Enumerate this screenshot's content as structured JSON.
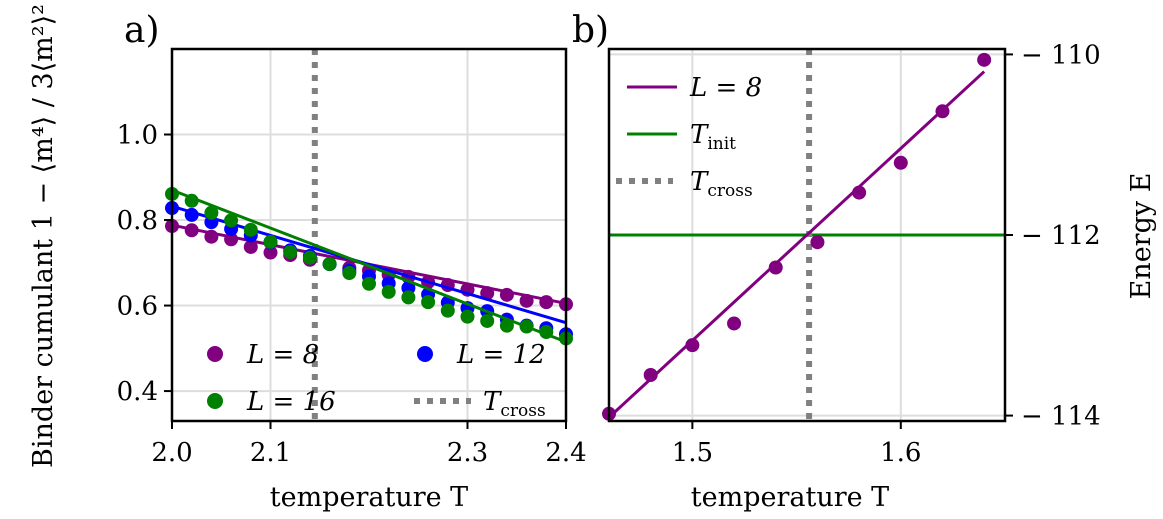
{
  "chart_data": [
    {
      "panel_label": "a)",
      "type": "scatter",
      "xlabel": "temperature T",
      "ylabel": "Binder cumulant 1 − ⟨m⁴⟩ / 3⟨m²⟩²",
      "xlim": [
        2.0,
        2.4
      ],
      "ylim": [
        0.33,
        1.2
      ],
      "xticks": [
        "2.0",
        "2.1",
        "2.3",
        "2.4"
      ],
      "xtick_values": [
        2.0,
        2.1,
        2.3,
        2.4
      ],
      "yticks": [
        "0.4",
        "0.6",
        "0.8",
        "1.0"
      ],
      "ytick_values": [
        0.4,
        0.6,
        0.8,
        1.0
      ],
      "grid": true,
      "legend_placement": "lower center",
      "series": [
        {
          "name": "L = 8",
          "color": "#800080",
          "x": [
            2.0,
            2.02,
            2.04,
            2.06,
            2.08,
            2.1,
            2.12,
            2.14,
            2.16,
            2.18,
            2.2,
            2.22,
            2.24,
            2.26,
            2.28,
            2.3,
            2.32,
            2.34,
            2.36,
            2.38,
            2.4
          ],
          "values": [
            0.786,
            0.776,
            0.761,
            0.755,
            0.737,
            0.724,
            0.718,
            0.707,
            0.697,
            0.688,
            0.682,
            0.672,
            0.667,
            0.655,
            0.648,
            0.637,
            0.629,
            0.625,
            0.611,
            0.608,
            0.603
          ],
          "fit": [
            0.788,
            0.605
          ]
        },
        {
          "name": "L = 12",
          "color": "#0000ff",
          "x": [
            2.0,
            2.02,
            2.04,
            2.06,
            2.08,
            2.1,
            2.12,
            2.14,
            2.16,
            2.18,
            2.2,
            2.22,
            2.24,
            2.26,
            2.28,
            2.3,
            2.32,
            2.34,
            2.36,
            2.38,
            2.4
          ],
          "values": [
            0.828,
            0.812,
            0.795,
            0.779,
            0.764,
            0.748,
            0.729,
            0.716,
            0.697,
            0.681,
            0.668,
            0.652,
            0.641,
            0.626,
            0.607,
            0.594,
            0.587,
            0.567,
            0.553,
            0.547,
            0.533
          ],
          "fit": [
            0.832,
            0.56
          ]
        },
        {
          "name": "L = 16",
          "color": "#008000",
          "x": [
            2.0,
            2.02,
            2.04,
            2.06,
            2.08,
            2.1,
            2.12,
            2.14,
            2.16,
            2.18,
            2.2,
            2.22,
            2.24,
            2.26,
            2.28,
            2.3,
            2.32,
            2.34,
            2.36,
            2.38,
            2.4
          ],
          "values": [
            0.861,
            0.845,
            0.817,
            0.799,
            0.777,
            0.749,
            0.725,
            0.712,
            0.697,
            0.676,
            0.651,
            0.632,
            0.619,
            0.608,
            0.588,
            0.574,
            0.564,
            0.553,
            0.551,
            0.538,
            0.523
          ],
          "fit": [
            0.87,
            0.515
          ]
        }
      ],
      "vline": {
        "name": "T_cross",
        "x": 2.145,
        "color": "#808080"
      },
      "legend": [
        {
          "label_main": "L = 8",
          "label_sub": "",
          "series": "L = 8",
          "marker": "dot",
          "color": "#800080"
        },
        {
          "label_main": "L = 12",
          "label_sub": "",
          "series": "L = 12",
          "marker": "dot",
          "color": "#0000ff"
        },
        {
          "label_main": "L = 16",
          "label_sub": "",
          "series": "L = 16",
          "marker": "dot",
          "color": "#008000"
        },
        {
          "label_main": "T",
          "label_sub": "cross",
          "series": "T_cross",
          "marker": "dotted-line",
          "color": "#808080"
        }
      ]
    },
    {
      "panel_label": "b)",
      "type": "scatter",
      "xlabel": "temperature T",
      "ylabel": "Energy E",
      "y_axis_side": "right",
      "xlim": [
        1.46,
        1.65
      ],
      "ylim": [
        -114.06,
        -109.94
      ],
      "xticks": [
        "1.5",
        "1.6"
      ],
      "xtick_values": [
        1.5,
        1.6
      ],
      "yticks": [
        "− 110",
        "− 112",
        "− 114"
      ],
      "ytick_values": [
        -110,
        -112,
        -114
      ],
      "grid": true,
      "legend_placement": "upper left",
      "series": [
        {
          "name": "L = 8",
          "color": "#800080",
          "x": [
            1.46,
            1.48,
            1.5,
            1.52,
            1.54,
            1.56,
            1.58,
            1.6,
            1.62,
            1.64
          ],
          "values": [
            -113.98,
            -113.55,
            -113.22,
            -112.98,
            -112.36,
            -112.08,
            -111.53,
            -111.2,
            -110.63,
            -110.06
          ],
          "fit_x": [
            1.46,
            1.64
          ],
          "fit_y": [
            -114.02,
            -110.19
          ]
        }
      ],
      "hline": {
        "name": "T_init",
        "y": -112.0,
        "color": "#008000"
      },
      "vline": {
        "name": "T_cross",
        "x": 1.556,
        "color": "#808080"
      },
      "legend": [
        {
          "label_main": "L = 8",
          "label_sub": "",
          "series": "L = 8",
          "marker": "line",
          "color": "#800080"
        },
        {
          "label_main": "T",
          "label_sub": "init",
          "series": "T_init",
          "marker": "line",
          "color": "#008000"
        },
        {
          "label_main": "T",
          "label_sub": "cross",
          "series": "T_cross",
          "marker": "dotted-line",
          "color": "#808080"
        }
      ]
    }
  ]
}
